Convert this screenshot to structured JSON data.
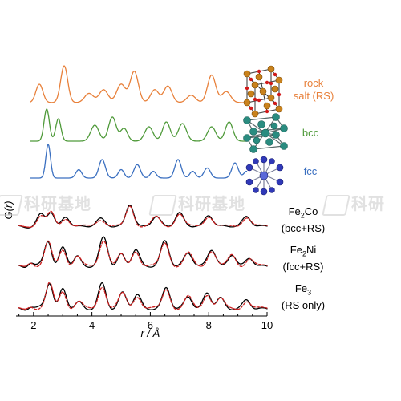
{
  "chart_data": {
    "type": "line",
    "xlabel": "r / Å",
    "ylabel": "G(r)",
    "xlim": [
      1.4,
      10.0
    ],
    "xticks": [
      2,
      4,
      6,
      8,
      10
    ],
    "xtick_labels": [
      "2",
      "4",
      "6",
      "8",
      "10"
    ],
    "grid": false,
    "reference_series": [
      {
        "name": "rock salt (RS)",
        "label_lines": [
          "rock",
          "salt (RS)"
        ],
        "color": "#e8803a",
        "structure_icon": "rock-salt-crystal-icon",
        "baseline": 0.0,
        "peaks": [
          [
            2.2,
            0.5,
            0.12
          ],
          [
            3.05,
            1.0,
            0.12
          ],
          [
            3.9,
            0.25,
            0.15
          ],
          [
            4.4,
            0.35,
            0.15
          ],
          [
            5.0,
            0.5,
            0.15
          ],
          [
            5.45,
            0.85,
            0.14
          ],
          [
            6.15,
            0.35,
            0.14
          ],
          [
            6.6,
            0.45,
            0.14
          ],
          [
            7.4,
            0.2,
            0.15
          ],
          [
            8.1,
            0.75,
            0.14
          ],
          [
            8.6,
            0.3,
            0.15
          ]
        ]
      },
      {
        "name": "bcc",
        "label_lines": [
          "bcc"
        ],
        "color": "#4f9a3a",
        "structure_icon": "bcc-crystal-icon",
        "baseline": 0.0,
        "peaks": [
          [
            2.45,
            1.0,
            0.09
          ],
          [
            2.85,
            0.7,
            0.09
          ],
          [
            4.1,
            0.5,
            0.14
          ],
          [
            4.7,
            0.75,
            0.13
          ],
          [
            5.1,
            0.4,
            0.12
          ],
          [
            5.95,
            0.45,
            0.14
          ],
          [
            6.55,
            0.6,
            0.13
          ],
          [
            7.1,
            0.55,
            0.14
          ],
          [
            8.1,
            0.45,
            0.14
          ],
          [
            8.7,
            0.6,
            0.13
          ]
        ]
      },
      {
        "name": "fcc",
        "label_lines": [
          "fcc"
        ],
        "color": "#3a6fc0",
        "structure_icon": "fcc-crystal-icon",
        "baseline": 0.0,
        "peaks": [
          [
            2.5,
            1.0,
            0.08
          ],
          [
            3.55,
            0.25,
            0.1
          ],
          [
            4.35,
            0.55,
            0.11
          ],
          [
            5.0,
            0.25,
            0.1
          ],
          [
            5.55,
            0.4,
            0.11
          ],
          [
            6.1,
            0.2,
            0.1
          ],
          [
            6.95,
            0.55,
            0.11
          ],
          [
            7.45,
            0.2,
            0.1
          ],
          [
            7.95,
            0.3,
            0.11
          ],
          [
            8.9,
            0.45,
            0.11
          ],
          [
            9.3,
            0.2,
            0.1
          ]
        ]
      }
    ],
    "measured_samples": [
      {
        "name": "Fe2Co (bcc+RS)",
        "label_base": "Fe",
        "label_sub": "2",
        "label_rest": "Co",
        "label_line2": "(bcc+RS)",
        "data_color": "#000000",
        "fit_color": "#cc1f1f",
        "baseline": 0.0,
        "peaks": [
          [
            2.25,
            0.45,
            0.13
          ],
          [
            2.6,
            0.6,
            0.12
          ],
          [
            3.1,
            0.35,
            0.13
          ],
          [
            4.3,
            0.3,
            0.15
          ],
          [
            5.3,
            0.9,
            0.13
          ],
          [
            6.2,
            0.4,
            0.14
          ],
          [
            7.0,
            0.55,
            0.14
          ],
          [
            8.0,
            0.45,
            0.14
          ],
          [
            9.3,
            0.4,
            0.14
          ]
        ]
      },
      {
        "name": "Fe2Ni (fcc+RS)",
        "label_base": "Fe",
        "label_sub": "2",
        "label_rest": "Ni",
        "label_line2": "(fcc+RS)",
        "data_color": "#000000",
        "fit_color": "#cc1f1f",
        "baseline": 0.0,
        "peaks": [
          [
            1.9,
            0.15,
            0.1
          ],
          [
            2.5,
            0.75,
            0.12
          ],
          [
            3.0,
            0.55,
            0.12
          ],
          [
            3.5,
            0.3,
            0.12
          ],
          [
            4.4,
            0.85,
            0.14
          ],
          [
            5.0,
            0.35,
            0.12
          ],
          [
            5.5,
            0.5,
            0.13
          ],
          [
            6.5,
            0.75,
            0.14
          ],
          [
            7.3,
            0.4,
            0.14
          ],
          [
            8.1,
            0.5,
            0.14
          ],
          [
            8.8,
            0.35,
            0.13
          ],
          [
            9.4,
            0.25,
            0.13
          ]
        ]
      },
      {
        "name": "Fe3 (RS only)",
        "label_base": "Fe",
        "label_sub": "3",
        "label_rest": "",
        "label_line2": "(RS only)",
        "data_color": "#000000",
        "fit_color": "#cc1f1f",
        "baseline": 0.0,
        "peaks": [
          [
            1.9,
            0.1,
            0.1
          ],
          [
            2.55,
            0.75,
            0.12
          ],
          [
            3.0,
            0.55,
            0.12
          ],
          [
            3.55,
            0.2,
            0.12
          ],
          [
            4.35,
            0.7,
            0.13
          ],
          [
            5.05,
            0.45,
            0.13
          ],
          [
            5.55,
            0.4,
            0.13
          ],
          [
            6.55,
            0.6,
            0.13
          ],
          [
            7.3,
            0.35,
            0.13
          ],
          [
            7.95,
            0.45,
            0.13
          ],
          [
            8.4,
            0.3,
            0.13
          ],
          [
            9.3,
            0.25,
            0.13
          ]
        ]
      }
    ]
  },
  "watermarks": [
    "科研基地",
    "科研基地",
    "科研"
  ]
}
